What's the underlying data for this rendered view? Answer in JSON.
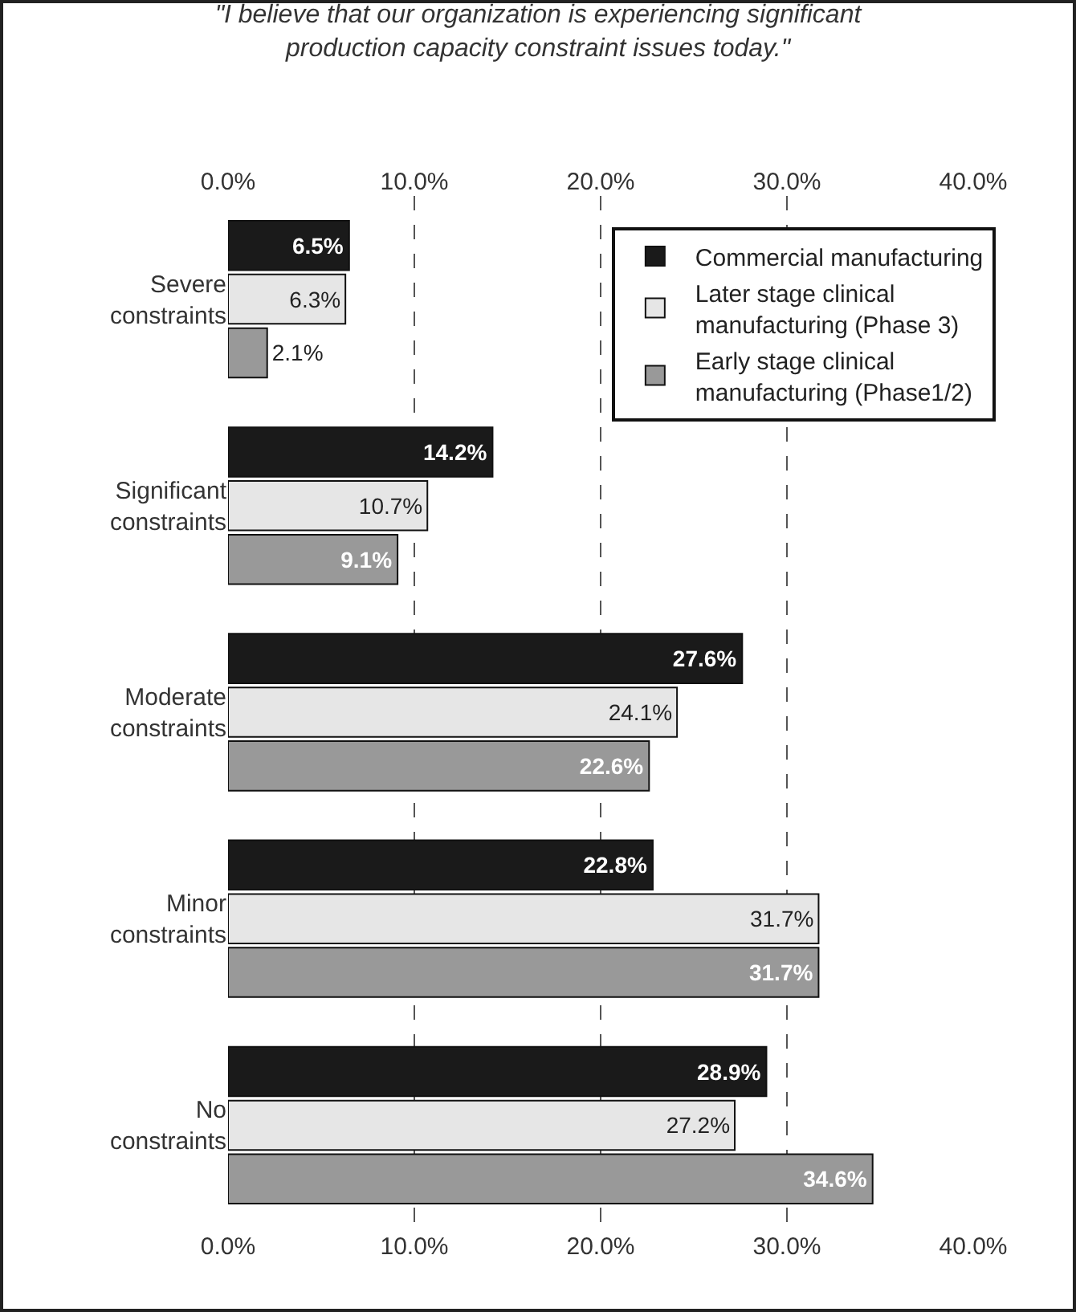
{
  "chart_data": {
    "type": "bar",
    "orientation": "horizontal",
    "title": "\"I believe that our organization is experiencing significant production capacity constraint issues today.\"",
    "categories": [
      "Severe constraints",
      "Significant constraints",
      "Moderate constraints",
      "Minor constraints",
      "No constraints"
    ],
    "series": [
      {
        "name": "Commercial manufacturing",
        "color": "#1a1a1a",
        "values": [
          6.5,
          14.2,
          27.6,
          22.8,
          28.9
        ],
        "value_labels": [
          "6.5%",
          "14.2%",
          "27.6%",
          "22.8%",
          "28.9%"
        ]
      },
      {
        "name": "Later stage clinical manufacturing (Phase 3)",
        "color": "#e6e6e6",
        "values": [
          6.3,
          10.7,
          24.1,
          31.7,
          27.2
        ],
        "value_labels": [
          "6.3%",
          "10.7%",
          "24.1%",
          "31.7%",
          "27.2%"
        ]
      },
      {
        "name": "Early stage clinical manufacturing (Phase1/2)",
        "color": "#999999",
        "values": [
          2.1,
          9.1,
          22.6,
          31.7,
          34.6
        ],
        "value_labels": [
          "2.1%",
          "9.1%",
          "22.6%",
          "31.7%",
          "34.6%"
        ]
      }
    ],
    "xlim": [
      0,
      40
    ],
    "xticks": [
      {
        "value": 0,
        "label": "0.0%"
      },
      {
        "value": 10,
        "label": "10.0%"
      },
      {
        "value": 20,
        "label": "20.0%"
      },
      {
        "value": 30,
        "label": "30.0%"
      },
      {
        "value": 40,
        "label": "40.0%"
      }
    ],
    "x2lim": [
      0,
      40
    ],
    "x2ticks": [
      {
        "value": 0,
        "label": "0.0%"
      },
      {
        "value": 10,
        "label": "10.0%"
      },
      {
        "value": 20,
        "label": "20.0%"
      },
      {
        "value": 30,
        "label": "30.0%"
      },
      {
        "value": 40,
        "label": "40.0%"
      }
    ],
    "grid": "x",
    "legend": "top right"
  }
}
